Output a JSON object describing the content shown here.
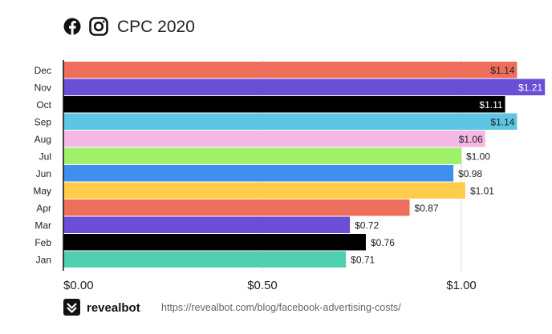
{
  "header": {
    "icons": [
      "facebook-icon",
      "instagram-icon"
    ],
    "title": "CPC 2020"
  },
  "footer": {
    "brand": "revealbot",
    "brand_icon": "revealbot-logo-icon",
    "url": "https://revealbot.com/blog/facebook-advertising-costs/"
  },
  "chart_data": {
    "type": "bar",
    "orientation": "horizontal",
    "title": "CPC 2020",
    "xlabel": "",
    "ylabel": "",
    "xlim": [
      0,
      1.2
    ],
    "x_ticks": [
      {
        "value": 0,
        "label": "$0.00"
      },
      {
        "value": 0.5,
        "label": "$0.50"
      },
      {
        "value": 1.0,
        "label": "$1.00"
      }
    ],
    "grid": true,
    "legend": "none",
    "categories": [
      "Dec",
      "Nov",
      "Oct",
      "Sep",
      "Aug",
      "Jul",
      "Jun",
      "May",
      "Apr",
      "Mar",
      "Feb",
      "Jan"
    ],
    "values": [
      1.14,
      1.21,
      1.11,
      1.14,
      1.06,
      1.0,
      0.98,
      1.01,
      0.87,
      0.72,
      0.76,
      0.71
    ],
    "value_labels": [
      "$1.14",
      "$1.21",
      "$1.11",
      "$1.14",
      "$1.06",
      "$1.00",
      "$0.98",
      "$1.01",
      "$0.87",
      "$0.72",
      "$0.76",
      "$0.71"
    ],
    "colors": [
      "#ee6e5c",
      "#6a4fd6",
      "#000000",
      "#5ec6e2",
      "#f5b8e6",
      "#9ef26a",
      "#3e8ff0",
      "#ffcc4a",
      "#ee6e5c",
      "#6a4fd6",
      "#000000",
      "#4fcfae"
    ],
    "label_inside": [
      true,
      true,
      true,
      true,
      true,
      false,
      false,
      false,
      false,
      false,
      false,
      false
    ],
    "label_colors": [
      "#222222",
      "#ffffff",
      "#ffffff",
      "#222222",
      "#222222",
      "#222222",
      "#222222",
      "#222222",
      "#222222",
      "#222222",
      "#222222",
      "#222222"
    ]
  }
}
